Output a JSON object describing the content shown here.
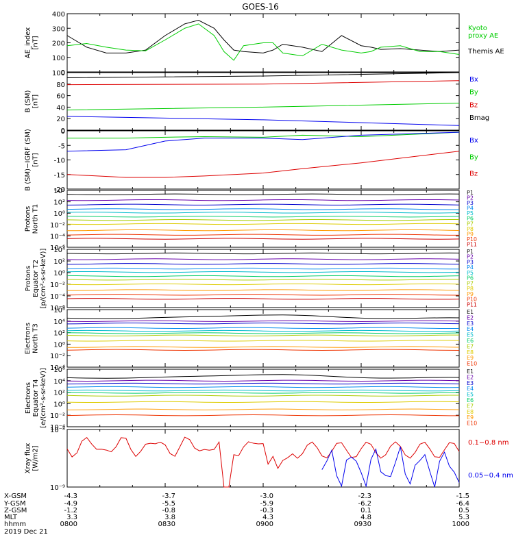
{
  "title": "GOES-16",
  "colors": {
    "black": "#000000",
    "blue": "#0000ee",
    "green": "#00cc00",
    "red": "#dd0000",
    "P": [
      "#000000",
      "#6600aa",
      "#0000cc",
      "#0088ee",
      "#00bbcc",
      "#00cc66",
      "#aacc00",
      "#ddcc00",
      "#ff9900",
      "#ee3300",
      "#cc0000"
    ],
    "E": [
      "#000000",
      "#6600aa",
      "#0000cc",
      "#0088ee",
      "#00bbcc",
      "#00cc66",
      "#aacc00",
      "#ddcc00",
      "#ff9900",
      "#ee3300",
      "#cc0000"
    ]
  },
  "chart_data": [
    {
      "id": "ae",
      "type": "line",
      "ylabel": "AE_index\n[nT]",
      "ylim": [
        0,
        400
      ],
      "yticks": [
        "400",
        "300",
        "200",
        "100",
        "0"
      ],
      "legend": [
        {
          "name": "Kyoto\nproxy AE",
          "color": "green"
        },
        {
          "name": "Themis AE",
          "color": "black"
        }
      ],
      "x_hours": [
        8.0,
        8.1,
        8.2,
        8.3,
        8.4,
        8.5,
        8.6,
        8.67,
        8.75,
        8.8,
        8.85,
        8.9,
        9.0,
        9.05,
        9.1,
        9.2,
        9.3,
        9.4,
        9.5,
        9.55,
        9.6,
        9.7,
        9.8,
        9.9,
        10.0
      ],
      "series": [
        {
          "name": "Themis AE",
          "color": "black",
          "values": [
            250,
            170,
            130,
            130,
            150,
            250,
            330,
            355,
            300,
            220,
            150,
            140,
            130,
            150,
            190,
            170,
            140,
            250,
            180,
            170,
            155,
            160,
            150,
            140,
            150
          ]
        },
        {
          "name": "Kyoto proxy AE",
          "color": "green",
          "values": [
            180,
            195,
            170,
            150,
            145,
            220,
            300,
            330,
            250,
            140,
            80,
            180,
            200,
            200,
            130,
            110,
            190,
            150,
            130,
            140,
            170,
            180,
            140,
            140,
            120
          ]
        }
      ]
    },
    {
      "id": "b",
      "type": "line",
      "ylabel": "B (SM)\n[nT]",
      "ylim": [
        0,
        100
      ],
      "yticks": [
        "100",
        "80",
        "60",
        "40",
        "20",
        "0"
      ],
      "legend": [
        {
          "name": "Bx",
          "color": "blue"
        },
        {
          "name": "By",
          "color": "green"
        },
        {
          "name": "Bz",
          "color": "red"
        },
        {
          "name": "Bmag",
          "color": "black"
        }
      ],
      "x_hours": [
        8.0,
        9.0,
        10.0
      ],
      "series": [
        {
          "name": "Bmag",
          "color": "black",
          "values": [
            91,
            94,
            100
          ]
        },
        {
          "name": "Bz",
          "color": "red",
          "values": [
            79,
            80,
            86
          ]
        },
        {
          "name": "By",
          "color": "green",
          "values": [
            35,
            40,
            47
          ]
        },
        {
          "name": "Bx",
          "color": "blue",
          "values": [
            24,
            18,
            8
          ]
        }
      ]
    },
    {
      "id": "bigrf",
      "type": "line",
      "ylabel": "B (SM)−IGRF (SM)\n[nT]",
      "ylim": [
        -20,
        0
      ],
      "yticks": [
        "0",
        "-5",
        "-10",
        "-15",
        "-20"
      ],
      "legend": [
        {
          "name": "Bx",
          "color": "blue"
        },
        {
          "name": "By",
          "color": "green"
        },
        {
          "name": "Bz",
          "color": "red"
        }
      ],
      "x_hours": [
        8.0,
        8.3,
        8.5,
        8.7,
        9.0,
        9.2,
        9.5,
        10.0
      ],
      "series": [
        {
          "name": "By",
          "color": "green",
          "values": [
            -2.5,
            -2.5,
            -2.2,
            -2.0,
            -2.2,
            -1.5,
            -2.0,
            -0.5
          ]
        },
        {
          "name": "Bx",
          "color": "blue",
          "values": [
            -7,
            -6.5,
            -3.5,
            -2.5,
            -2.5,
            -3,
            -1.5,
            -0.5
          ]
        },
        {
          "name": "Bz",
          "color": "red",
          "values": [
            -15,
            -16,
            -16,
            -15.5,
            -14.5,
            -13,
            -11,
            -7
          ]
        }
      ]
    },
    {
      "id": "pn",
      "type": "line",
      "ylabel": "Protons\nNorth T1",
      "log": true,
      "ylim_exp": [
        -6,
        4
      ],
      "yticks": [
        "10⁴",
        "10²",
        "10⁰",
        "10⁻²",
        "10⁻⁴",
        "10⁻⁶"
      ],
      "legend": [
        "P1",
        "P2",
        "P3",
        "P4",
        "P5",
        "P6",
        "P7",
        "P8",
        "P9",
        "P10",
        "P11"
      ],
      "levels_exp": [
        3.3,
        2.3,
        1.5,
        0.7,
        0.1,
        -0.6,
        -1.2,
        -1.9,
        -3.0,
        -3.8,
        -4.5
      ]
    },
    {
      "id": "pe",
      "type": "line",
      "ylabel": "Protons\nEquator T2\n[p/(cm²-s-sr-keV)]",
      "log": true,
      "ylim_exp": [
        -6,
        4
      ],
      "yticks": [
        "10⁴",
        "10²",
        "10⁰",
        "10⁻²",
        "10⁻⁴",
        "10⁻⁶"
      ],
      "legend": [
        "P1",
        "P2",
        "P3",
        "P4",
        "P5",
        "P6",
        "P7",
        "P8",
        "P9",
        "P10",
        "P11"
      ],
      "levels_exp": [
        3.3,
        2.3,
        1.5,
        0.7,
        0.1,
        -0.6,
        -1.2,
        -2.0,
        -3.0,
        -3.8,
        -4.5
      ]
    },
    {
      "id": "en",
      "type": "line",
      "ylabel": "Electrons\nNorth T3",
      "log": true,
      "ylim_exp": [
        -4,
        6
      ],
      "yticks": [
        "10⁶",
        "10⁴",
        "10²",
        "10⁰",
        "10⁻²",
        "10⁻⁴"
      ],
      "legend": [
        "E1",
        "E2",
        "E3",
        "E4",
        "E5",
        "E6",
        "E7",
        "E8",
        "E9",
        "E10"
      ],
      "levels_exp": [
        4.5,
        4.0,
        3.6,
        2.8,
        2.3,
        1.9,
        1.5,
        0.6,
        -0.5,
        -1.0
      ]
    },
    {
      "id": "ee",
      "type": "line",
      "ylabel": "Electrons\nEquator T4\n[e/(cm²-s-sr-keV)]",
      "log": true,
      "ylim_exp": [
        -4,
        6
      ],
      "yticks": [
        "10⁶",
        "10⁴",
        "10²",
        "10⁰",
        "10⁻²",
        "10⁻⁴"
      ],
      "legend": [
        "E1",
        "E2",
        "E3",
        "E4",
        "E5",
        "E6",
        "E7",
        "E8",
        "E9",
        "E10"
      ],
      "levels_exp": [
        4.5,
        4.0,
        3.5,
        2.9,
        2.3,
        1.9,
        1.4,
        0.3,
        -1.0,
        -2.0
      ]
    },
    {
      "id": "xray",
      "type": "line",
      "ylabel": "Xray flux\n[W/m2]",
      "log": true,
      "yticks": [
        "10⁻⁸",
        "10⁻⁹"
      ],
      "legend": [
        {
          "name": "0.1−0.8 nm",
          "color": "red"
        },
        {
          "name": "0.05−0.4 nm",
          "color": "blue"
        }
      ]
    }
  ],
  "x_axis": {
    "row_labels": [
      "X-GSM",
      "Y-GSM",
      "Z-GSM",
      "MLT",
      "hhmm",
      "2019 Dec 21"
    ],
    "ticks": [
      {
        "x-gsm": "-4.3",
        "y-gsm": "-4.9",
        "z-gsm": "-1.2",
        "mlt": "3.3",
        "hhmm": "0800"
      },
      {
        "x-gsm": "-3.7",
        "y-gsm": "-5.5",
        "z-gsm": "-0.8",
        "mlt": "3.8",
        "hhmm": "0830"
      },
      {
        "x-gsm": "-3.0",
        "y-gsm": "-5.9",
        "z-gsm": "-0.3",
        "mlt": "4.3",
        "hhmm": "0900"
      },
      {
        "x-gsm": "-2.3",
        "y-gsm": "-6.2",
        "z-gsm": "0.1",
        "mlt": "4.8",
        "hhmm": "0930"
      },
      {
        "x-gsm": "-1.5",
        "y-gsm": "-6.4",
        "z-gsm": "0.5",
        "mlt": "5.3",
        "hhmm": "1000"
      }
    ]
  }
}
